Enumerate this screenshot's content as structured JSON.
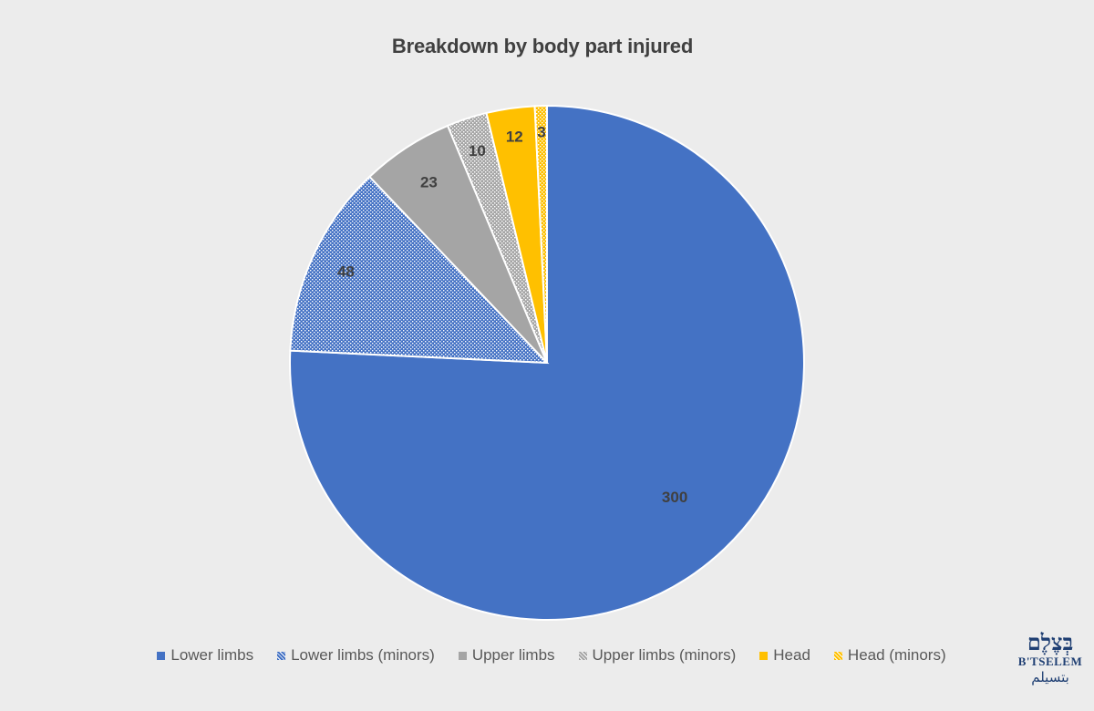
{
  "chart_data": {
    "type": "pie",
    "title": "Breakdown by body part injured",
    "categories": [
      "Lower limbs",
      "Lower limbs (minors)",
      "Upper limbs",
      "Upper limbs (minors)",
      "Head",
      "Head (minors)"
    ],
    "values": [
      300,
      48,
      23,
      10,
      12,
      3
    ],
    "colors": [
      "#4472c4",
      "#4472c4",
      "#a5a5a5",
      "#a5a5a5",
      "#ffc000",
      "#ffc000"
    ],
    "patterned": [
      false,
      true,
      false,
      true,
      false,
      true
    ],
    "start_angle": "12 o'clock",
    "direction": "clockwise",
    "data_labels": true,
    "legend_position": "bottom"
  },
  "logo": {
    "hebrew": "בְּצֶלֶם",
    "latin": "B'TSELEM",
    "arabic": "بتسيلم"
  }
}
